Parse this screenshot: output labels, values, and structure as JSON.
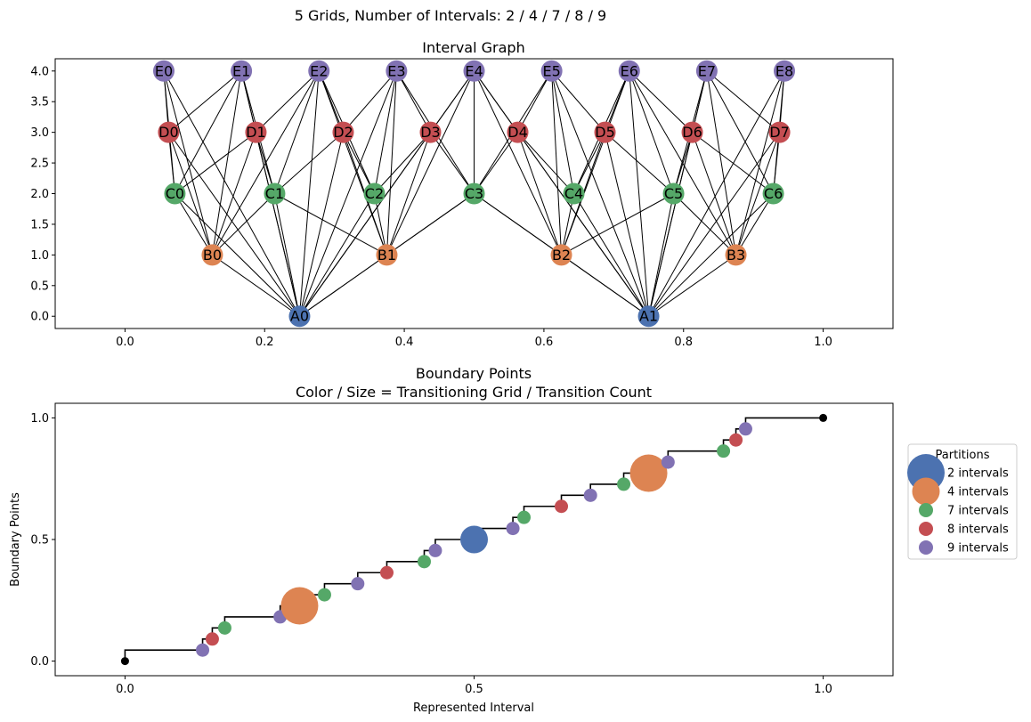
{
  "figure": {
    "suptitle": "5 Grids, Number of Intervals: 2 / 4 / 7 / 8 / 9"
  },
  "chart_data": [
    {
      "type": "network",
      "title": "Interval Graph",
      "xlim": [
        -0.1,
        1.1
      ],
      "ylim": [
        -0.2,
        4.2
      ],
      "xticks": [
        "0.0",
        "0.2",
        "0.4",
        "0.6",
        "0.8",
        "1.0"
      ],
      "yticks": [
        "0.0",
        "0.5",
        "1.0",
        "1.5",
        "2.0",
        "2.5",
        "3.0",
        "3.5",
        "4.0"
      ],
      "colors": {
        "A": "#4c72b0",
        "B": "#dd8452",
        "C": "#55a868",
        "D": "#c44e52",
        "E": "#8172b3"
      },
      "levels": [
        {
          "grid": "A",
          "intervals": 2,
          "y": 0
        },
        {
          "grid": "B",
          "intervals": 4,
          "y": 1
        },
        {
          "grid": "C",
          "intervals": 7,
          "y": 2
        },
        {
          "grid": "D",
          "intervals": 8,
          "y": 3
        },
        {
          "grid": "E",
          "intervals": 9,
          "y": 4
        }
      ]
    },
    {
      "type": "step-scatter",
      "title": "Boundary Points",
      "subtitle": "Color / Size = Transitioning Grid / Transition Count",
      "xlabel": "Represented Interval",
      "ylabel": "Boundary Points",
      "xlim": [
        -0.1,
        1.1
      ],
      "ylim": [
        -0.06,
        1.06
      ],
      "xticks": [
        "0.0",
        "0.5",
        "1.0"
      ],
      "yticks": [
        "0.0",
        "0.5",
        "1.0"
      ],
      "legend": {
        "title": "Partitions",
        "placement": "right, outside",
        "entries": [
          {
            "label": "2 intervals",
            "color": "#4c72b0"
          },
          {
            "label": "4 intervals",
            "color": "#dd8452"
          },
          {
            "label": "7 intervals",
            "color": "#55a868"
          },
          {
            "label": "8 intervals",
            "color": "#c44e52"
          },
          {
            "label": "9 intervals",
            "color": "#8172b3"
          }
        ]
      },
      "grids": [
        2,
        4,
        7,
        8,
        9
      ],
      "endpoint_color": "#000000"
    }
  ]
}
